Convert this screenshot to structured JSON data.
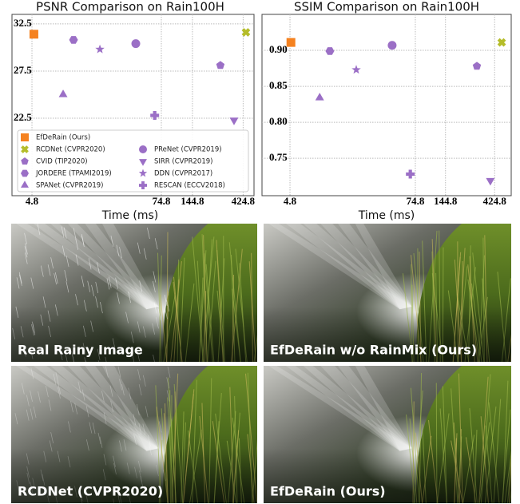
{
  "chart_data": [
    {
      "type": "scatter",
      "title": "PSNR Comparison on Rain100H",
      "x_label": "Time (ms)",
      "xscale": "log",
      "xlim": [
        3.14,
        535
      ],
      "xticks": [
        4.8,
        74.8,
        144.8,
        424.8
      ],
      "ylim": [
        14.3,
        33.5
      ],
      "yticks": [
        32.5,
        27.5,
        22.5
      ],
      "grid": true,
      "legend": "lower left",
      "series": [
        {
          "name": "EfDeRain (Ours)",
          "color": "#f58220",
          "marker": "square",
          "x": [
            5.0
          ],
          "values": [
            31.4
          ]
        },
        {
          "name": "RCDNet (CVPR2020)",
          "color": "#b5bd2a",
          "marker": "x",
          "x": [
            451
          ],
          "values": [
            31.6
          ]
        },
        {
          "name": "CVID (TIP2020)",
          "color": "#9b6fc6",
          "marker": "pentagon",
          "x": [
            262
          ],
          "values": [
            28.1
          ]
        },
        {
          "name": "JORDERE (TPAMI2019)",
          "color": "#9b6fc6",
          "marker": "hexagon",
          "x": [
            11.6
          ],
          "values": [
            30.8
          ]
        },
        {
          "name": "SPANet (CVPR2019)",
          "color": "#9b6fc6",
          "marker": "triangle",
          "x": [
            9.3
          ],
          "values": [
            25.0
          ]
        },
        {
          "name": "PReNet (CVPR2019)",
          "color": "#9b6fc6",
          "marker": "circle",
          "x": [
            43.5
          ],
          "values": [
            30.4
          ]
        },
        {
          "name": "SIRR (CVPR2019)",
          "color": "#9b6fc6",
          "marker": "triangle-down",
          "x": [
            350
          ],
          "values": [
            22.3
          ]
        },
        {
          "name": "DDN (CVPR2017)",
          "color": "#9b6fc6",
          "marker": "star",
          "x": [
            20.3
          ],
          "values": [
            29.8
          ]
        },
        {
          "name": "RESCAN (ECCV2018)",
          "color": "#9b6fc6",
          "marker": "plus",
          "x": [
            65
          ],
          "values": [
            22.8
          ]
        }
      ]
    },
    {
      "type": "scatter",
      "title": "SSIM Comparison on Rain100H",
      "x_label": "Time (ms)",
      "xscale": "log",
      "xlim": [
        2.6,
        611
      ],
      "xticks": [
        4.8,
        74.8,
        144.8,
        424.8
      ],
      "ylim": [
        0.698,
        0.95
      ],
      "yticks": [
        {
          "value": 0.9,
          "label": "0.90"
        },
        0.85,
        {
          "value": 0.8,
          "label": "0.80"
        },
        0.75
      ],
      "grid": true,
      "series": [
        {
          "color": "#f58220",
          "marker": "square",
          "x": [
            4.9
          ],
          "values": [
            0.911
          ]
        },
        {
          "color": "#b5bd2a",
          "marker": "x",
          "x": [
            496
          ],
          "values": [
            0.911
          ]
        },
        {
          "color": "#9b6fc6",
          "marker": "pentagon",
          "x": [
            288
          ],
          "values": [
            0.878
          ]
        },
        {
          "color": "#9b6fc6",
          "marker": "hexagon",
          "x": [
            11.5
          ],
          "values": [
            0.899
          ]
        },
        {
          "color": "#9b6fc6",
          "marker": "triangle",
          "x": [
            9.2
          ],
          "values": [
            0.834
          ]
        },
        {
          "color": "#9b6fc6",
          "marker": "circle",
          "x": [
            45
          ],
          "values": [
            0.907
          ]
        },
        {
          "color": "#9b6fc6",
          "marker": "triangle-down",
          "x": [
            387
          ],
          "values": [
            0.719
          ]
        },
        {
          "color": "#9b6fc6",
          "marker": "star",
          "x": [
            20.5
          ],
          "values": [
            0.873
          ]
        },
        {
          "color": "#9b6fc6",
          "marker": "plus",
          "x": [
            67
          ],
          "values": [
            0.728
          ]
        }
      ]
    }
  ],
  "images": [
    {
      "caption": "Real Rainy Image"
    },
    {
      "caption": "EfDeRain w/o RainMix (Ours)"
    },
    {
      "caption": "RCDNet (CVPR2020)"
    },
    {
      "caption": "EfDeRain (Ours)"
    }
  ]
}
